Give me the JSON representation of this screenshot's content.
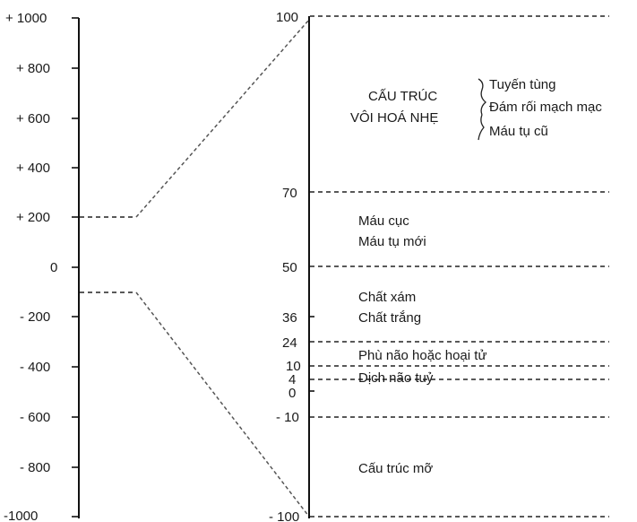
{
  "left_scale": {
    "labels": [
      "+ 1000",
      "+ 800",
      "+ 600",
      "+ 400",
      "+ 200",
      "0",
      "- 200",
      "- 400",
      "- 600",
      "- 800",
      "-1000"
    ]
  },
  "right_scale": {
    "levels": [
      {
        "label": "100"
      },
      {
        "label": "70"
      },
      {
        "label": "50"
      },
      {
        "label": "36"
      },
      {
        "label": "24"
      },
      {
        "label": "10"
      },
      {
        "label": "4"
      },
      {
        "label": "0"
      },
      {
        "label": "- 10"
      },
      {
        "label": "- 100"
      }
    ]
  },
  "regions": {
    "calcified_title_1": "CẤU TRÚC",
    "calcified_title_2": "VÔI HOÁ NHẸ",
    "calcified_items": [
      "Tuyến tùng",
      "Đám rối mạch mạc",
      "Máu tụ cũ"
    ],
    "blood_1": "Máu cục",
    "blood_2": "Máu tụ mới",
    "gray_matter": "Chất xám",
    "white_matter": "Chất trắng",
    "edema": "Phù não hoặc hoại tử",
    "csf": "Dịch não tuỷ",
    "fat": "Cấu trúc mỡ"
  }
}
